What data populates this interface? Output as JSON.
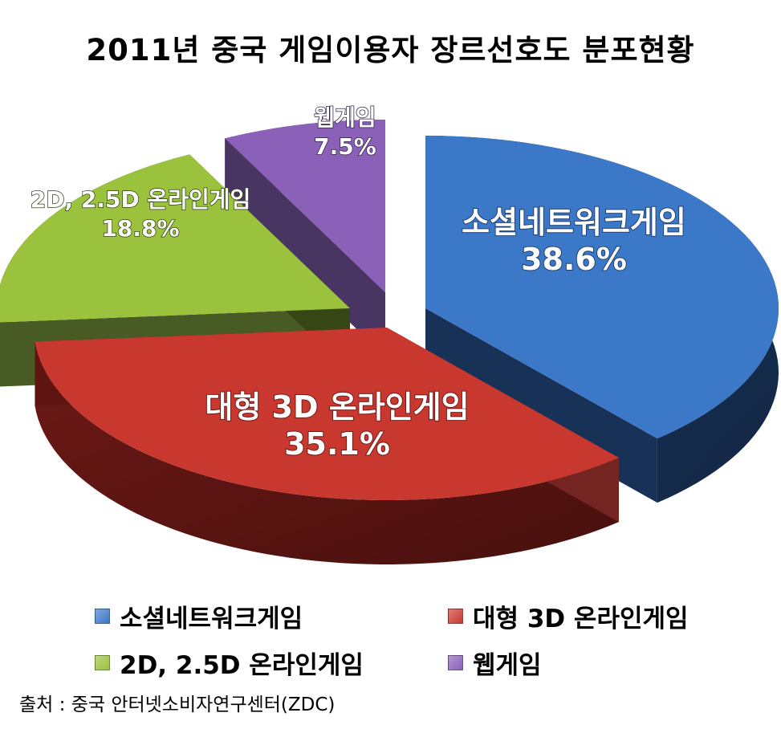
{
  "chart_data": {
    "type": "pie",
    "title": "2011년 중국 게임이용자 장르선호도 분포현황",
    "slices": [
      {
        "name": "소셜네트워크게임",
        "percent_label": "38.6%",
        "value": 38.6,
        "color": "#3b78c8",
        "side_color": "#1c3a66"
      },
      {
        "name": "대형 3D 온라인게임",
        "percent_label": "35.1%",
        "value": 35.1,
        "color": "#c8382f",
        "side_color": "#6e1915"
      },
      {
        "name": "2D, 2.5D 온라인게임",
        "percent_label": "18.8%",
        "value": 18.8,
        "color": "#9ac23c",
        "side_color": "#3f5218"
      },
      {
        "name": "웹게임",
        "percent_label": "7.5%",
        "value": 7.5,
        "color": "#8a60b8",
        "side_color": "#3f2a5a"
      }
    ],
    "legend_position": "bottom"
  },
  "source": "출처 : 중국 안터넷소비자연구센터(ZDC)"
}
